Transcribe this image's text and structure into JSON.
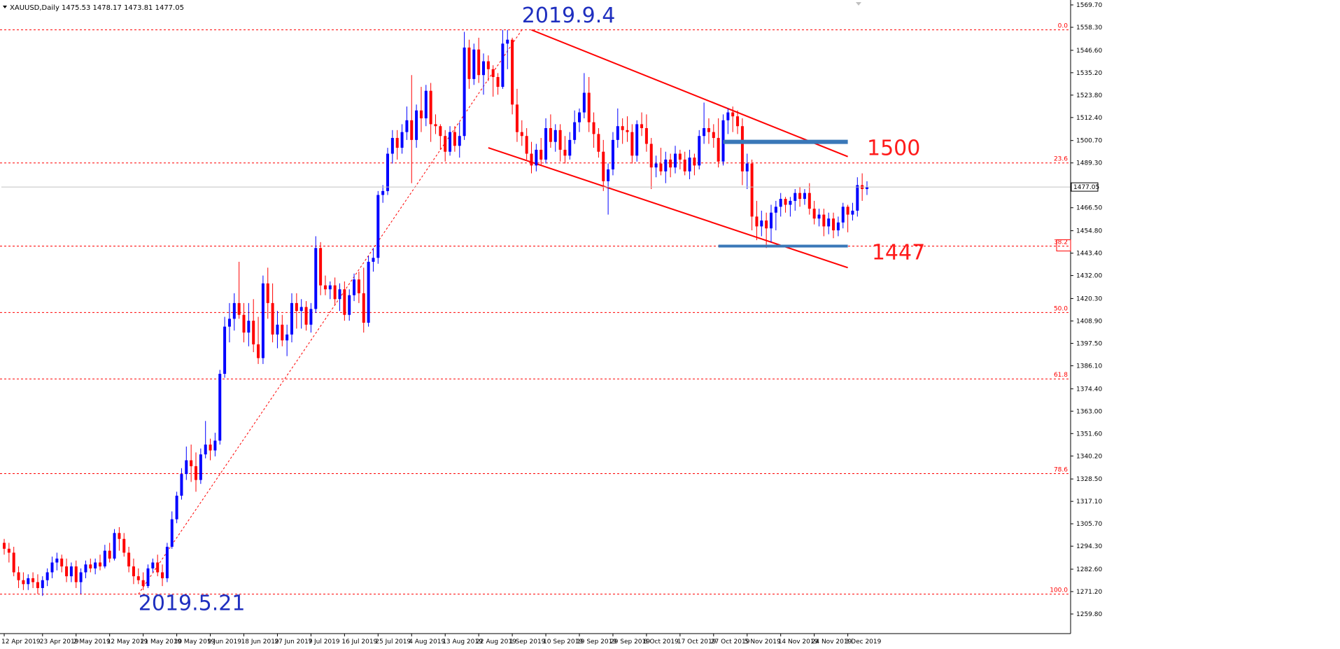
{
  "header": {
    "symbol": "XAUUSD,Daily",
    "ohlc": "1475.53 1478.17 1473.81 1477.05"
  },
  "chart_data": {
    "type": "candlestick",
    "title": "XAUUSD,Daily",
    "ylim": [
      1259.8,
      1569.7
    ],
    "y_ticks": [
      "1569.70",
      "1558.30",
      "1546.60",
      "1535.20",
      "1523.80",
      "1512.40",
      "1500.70",
      "1489.30",
      "1477.05",
      "1466.50",
      "1454.80",
      "1443.40",
      "1432.00",
      "1420.30",
      "1408.90",
      "1397.50",
      "1386.10",
      "1374.40",
      "1363.00",
      "1351.60",
      "1340.20",
      "1328.50",
      "1317.10",
      "1305.70",
      "1294.30",
      "1282.60",
      "1271.20",
      "1259.80"
    ],
    "x_ticks": [
      "12 Apr 2019",
      "23 Apr 2019",
      "2 May 2019",
      "12 May 2019",
      "21 May 2019",
      "30 May 2019",
      "9 Jun 2019",
      "18 Jun 2019",
      "27 Jun 2019",
      "7 Jul 2019",
      "16 Jul 2019",
      "25 Jul 2019",
      "4 Aug 2019",
      "13 Aug 2019",
      "22 Aug 2019",
      "1 Sep 2019",
      "10 Sep 2019",
      "19 Sep 2019",
      "29 Sep 2019",
      "8 Oct 2019",
      "17 Oct 2019",
      "27 Oct 2019",
      "5 Nov 2019",
      "14 Nov 2019",
      "24 Nov 2019",
      "3 Dec 2019"
    ],
    "current_price": "1477.05",
    "bull_color": "#0000ff",
    "bear_color": "#ff0000",
    "candles": [
      {
        "o": 1296,
        "h": 1298,
        "l": 1290,
        "c": 1293
      },
      {
        "o": 1293,
        "h": 1296,
        "l": 1286,
        "c": 1291
      },
      {
        "o": 1291,
        "h": 1294,
        "l": 1279,
        "c": 1281
      },
      {
        "o": 1281,
        "h": 1284,
        "l": 1273,
        "c": 1277
      },
      {
        "o": 1277,
        "h": 1281,
        "l": 1272,
        "c": 1275
      },
      {
        "o": 1275,
        "h": 1280,
        "l": 1272,
        "c": 1278
      },
      {
        "o": 1278,
        "h": 1281,
        "l": 1273,
        "c": 1276
      },
      {
        "o": 1276,
        "h": 1280,
        "l": 1270,
        "c": 1273
      },
      {
        "o": 1273,
        "h": 1279,
        "l": 1269,
        "c": 1277
      },
      {
        "o": 1277,
        "h": 1283,
        "l": 1274,
        "c": 1281
      },
      {
        "o": 1281,
        "h": 1289,
        "l": 1278,
        "c": 1286
      },
      {
        "o": 1286,
        "h": 1291,
        "l": 1282,
        "c": 1288
      },
      {
        "o": 1288,
        "h": 1290,
        "l": 1281,
        "c": 1284
      },
      {
        "o": 1284,
        "h": 1288,
        "l": 1276,
        "c": 1279
      },
      {
        "o": 1279,
        "h": 1286,
        "l": 1276,
        "c": 1284
      },
      {
        "o": 1284,
        "h": 1287,
        "l": 1273,
        "c": 1276
      },
      {
        "o": 1276,
        "h": 1283,
        "l": 1270,
        "c": 1281
      },
      {
        "o": 1281,
        "h": 1287,
        "l": 1278,
        "c": 1285
      },
      {
        "o": 1285,
        "h": 1288,
        "l": 1281,
        "c": 1283
      },
      {
        "o": 1283,
        "h": 1288,
        "l": 1280,
        "c": 1286
      },
      {
        "o": 1286,
        "h": 1290,
        "l": 1282,
        "c": 1284
      },
      {
        "o": 1284,
        "h": 1295,
        "l": 1283,
        "c": 1292
      },
      {
        "o": 1292,
        "h": 1296,
        "l": 1286,
        "c": 1288
      },
      {
        "o": 1288,
        "h": 1303,
        "l": 1287,
        "c": 1301
      },
      {
        "o": 1301,
        "h": 1304,
        "l": 1292,
        "c": 1298
      },
      {
        "o": 1298,
        "h": 1301,
        "l": 1289,
        "c": 1291
      },
      {
        "o": 1291,
        "h": 1294,
        "l": 1281,
        "c": 1284
      },
      {
        "o": 1284,
        "h": 1288,
        "l": 1275,
        "c": 1279
      },
      {
        "o": 1279,
        "h": 1283,
        "l": 1275,
        "c": 1277
      },
      {
        "o": 1277,
        "h": 1281,
        "l": 1272,
        "c": 1274
      },
      {
        "o": 1274,
        "h": 1285,
        "l": 1273,
        "c": 1283
      },
      {
        "o": 1283,
        "h": 1288,
        "l": 1281,
        "c": 1286
      },
      {
        "o": 1286,
        "h": 1290,
        "l": 1279,
        "c": 1281
      },
      {
        "o": 1281,
        "h": 1285,
        "l": 1274,
        "c": 1278
      },
      {
        "o": 1278,
        "h": 1296,
        "l": 1276,
        "c": 1294
      },
      {
        "o": 1294,
        "h": 1312,
        "l": 1293,
        "c": 1308
      },
      {
        "o": 1308,
        "h": 1322,
        "l": 1306,
        "c": 1320
      },
      {
        "o": 1320,
        "h": 1334,
        "l": 1318,
        "c": 1331
      },
      {
        "o": 1331,
        "h": 1345,
        "l": 1328,
        "c": 1338
      },
      {
        "o": 1338,
        "h": 1346,
        "l": 1327,
        "c": 1335
      },
      {
        "o": 1335,
        "h": 1342,
        "l": 1322,
        "c": 1328
      },
      {
        "o": 1328,
        "h": 1344,
        "l": 1326,
        "c": 1341
      },
      {
        "o": 1341,
        "h": 1358,
        "l": 1339,
        "c": 1346
      },
      {
        "o": 1346,
        "h": 1349,
        "l": 1338,
        "c": 1343
      },
      {
        "o": 1343,
        "h": 1352,
        "l": 1340,
        "c": 1348
      },
      {
        "o": 1348,
        "h": 1384,
        "l": 1346,
        "c": 1382
      },
      {
        "o": 1382,
        "h": 1411,
        "l": 1380,
        "c": 1406
      },
      {
        "o": 1406,
        "h": 1418,
        "l": 1398,
        "c": 1410
      },
      {
        "o": 1410,
        "h": 1423,
        "l": 1404,
        "c": 1418
      },
      {
        "o": 1418,
        "h": 1439,
        "l": 1410,
        "c": 1412
      },
      {
        "o": 1412,
        "h": 1418,
        "l": 1398,
        "c": 1403
      },
      {
        "o": 1403,
        "h": 1418,
        "l": 1396,
        "c": 1409
      },
      {
        "o": 1409,
        "h": 1420,
        "l": 1393,
        "c": 1397
      },
      {
        "o": 1397,
        "h": 1411,
        "l": 1387,
        "c": 1390
      },
      {
        "o": 1390,
        "h": 1432,
        "l": 1387,
        "c": 1428
      },
      {
        "o": 1428,
        "h": 1436,
        "l": 1410,
        "c": 1418
      },
      {
        "o": 1418,
        "h": 1428,
        "l": 1398,
        "c": 1402
      },
      {
        "o": 1402,
        "h": 1414,
        "l": 1395,
        "c": 1407
      },
      {
        "o": 1407,
        "h": 1412,
        "l": 1396,
        "c": 1399
      },
      {
        "o": 1399,
        "h": 1407,
        "l": 1391,
        "c": 1402
      },
      {
        "o": 1402,
        "h": 1423,
        "l": 1398,
        "c": 1418
      },
      {
        "o": 1418,
        "h": 1423,
        "l": 1405,
        "c": 1414
      },
      {
        "o": 1414,
        "h": 1420,
        "l": 1405,
        "c": 1416
      },
      {
        "o": 1416,
        "h": 1419,
        "l": 1404,
        "c": 1407
      },
      {
        "o": 1407,
        "h": 1418,
        "l": 1403,
        "c": 1415
      },
      {
        "o": 1415,
        "h": 1452,
        "l": 1413,
        "c": 1446
      },
      {
        "o": 1446,
        "h": 1449,
        "l": 1422,
        "c": 1427
      },
      {
        "o": 1427,
        "h": 1432,
        "l": 1422,
        "c": 1425
      },
      {
        "o": 1425,
        "h": 1429,
        "l": 1420,
        "c": 1427
      },
      {
        "o": 1427,
        "h": 1431,
        "l": 1417,
        "c": 1420
      },
      {
        "o": 1420,
        "h": 1428,
        "l": 1414,
        "c": 1425
      },
      {
        "o": 1425,
        "h": 1429,
        "l": 1409,
        "c": 1412
      },
      {
        "o": 1412,
        "h": 1425,
        "l": 1409,
        "c": 1422
      },
      {
        "o": 1422,
        "h": 1433,
        "l": 1419,
        "c": 1430
      },
      {
        "o": 1430,
        "h": 1434,
        "l": 1418,
        "c": 1423
      },
      {
        "o": 1423,
        "h": 1436,
        "l": 1403,
        "c": 1408
      },
      {
        "o": 1408,
        "h": 1442,
        "l": 1406,
        "c": 1439
      },
      {
        "o": 1439,
        "h": 1446,
        "l": 1434,
        "c": 1441
      },
      {
        "o": 1441,
        "h": 1475,
        "l": 1438,
        "c": 1473
      },
      {
        "o": 1473,
        "h": 1478,
        "l": 1469,
        "c": 1475
      },
      {
        "o": 1475,
        "h": 1497,
        "l": 1473,
        "c": 1494
      },
      {
        "o": 1494,
        "h": 1506,
        "l": 1489,
        "c": 1502
      },
      {
        "o": 1502,
        "h": 1506,
        "l": 1491,
        "c": 1497
      },
      {
        "o": 1497,
        "h": 1509,
        "l": 1494,
        "c": 1505
      },
      {
        "o": 1505,
        "h": 1518,
        "l": 1501,
        "c": 1511
      },
      {
        "o": 1511,
        "h": 1534,
        "l": 1479,
        "c": 1501
      },
      {
        "o": 1501,
        "h": 1519,
        "l": 1497,
        "c": 1516
      },
      {
        "o": 1516,
        "h": 1528,
        "l": 1505,
        "c": 1512
      },
      {
        "o": 1512,
        "h": 1529,
        "l": 1508,
        "c": 1526
      },
      {
        "o": 1526,
        "h": 1530,
        "l": 1500,
        "c": 1509
      },
      {
        "o": 1509,
        "h": 1514,
        "l": 1504,
        "c": 1508
      },
      {
        "o": 1508,
        "h": 1509,
        "l": 1496,
        "c": 1503
      },
      {
        "o": 1503,
        "h": 1506,
        "l": 1490,
        "c": 1495
      },
      {
        "o": 1495,
        "h": 1508,
        "l": 1493,
        "c": 1505
      },
      {
        "o": 1505,
        "h": 1508,
        "l": 1495,
        "c": 1498
      },
      {
        "o": 1498,
        "h": 1510,
        "l": 1492,
        "c": 1503
      },
      {
        "o": 1503,
        "h": 1556,
        "l": 1501,
        "c": 1548
      },
      {
        "o": 1548,
        "h": 1552,
        "l": 1527,
        "c": 1532
      },
      {
        "o": 1532,
        "h": 1550,
        "l": 1529,
        "c": 1547
      },
      {
        "o": 1547,
        "h": 1553,
        "l": 1530,
        "c": 1534
      },
      {
        "o": 1534,
        "h": 1545,
        "l": 1524,
        "c": 1541
      },
      {
        "o": 1541,
        "h": 1544,
        "l": 1531,
        "c": 1537
      },
      {
        "o": 1537,
        "h": 1539,
        "l": 1523,
        "c": 1533
      },
      {
        "o": 1533,
        "h": 1535,
        "l": 1524,
        "c": 1528
      },
      {
        "o": 1528,
        "h": 1557,
        "l": 1527,
        "c": 1550
      },
      {
        "o": 1550,
        "h": 1557,
        "l": 1537,
        "c": 1552
      },
      {
        "o": 1552,
        "h": 1553,
        "l": 1514,
        "c": 1519
      },
      {
        "o": 1519,
        "h": 1527,
        "l": 1500,
        "c": 1505
      },
      {
        "o": 1505,
        "h": 1511,
        "l": 1498,
        "c": 1503
      },
      {
        "o": 1503,
        "h": 1507,
        "l": 1491,
        "c": 1494
      },
      {
        "o": 1494,
        "h": 1500,
        "l": 1484,
        "c": 1488
      },
      {
        "o": 1488,
        "h": 1499,
        "l": 1485,
        "c": 1496
      },
      {
        "o": 1496,
        "h": 1502,
        "l": 1488,
        "c": 1491
      },
      {
        "o": 1491,
        "h": 1512,
        "l": 1489,
        "c": 1507
      },
      {
        "o": 1507,
        "h": 1514,
        "l": 1497,
        "c": 1500
      },
      {
        "o": 1500,
        "h": 1509,
        "l": 1495,
        "c": 1506
      },
      {
        "o": 1506,
        "h": 1509,
        "l": 1490,
        "c": 1496
      },
      {
        "o": 1496,
        "h": 1503,
        "l": 1489,
        "c": 1493
      },
      {
        "o": 1493,
        "h": 1505,
        "l": 1491,
        "c": 1501
      },
      {
        "o": 1501,
        "h": 1516,
        "l": 1499,
        "c": 1510
      },
      {
        "o": 1510,
        "h": 1517,
        "l": 1505,
        "c": 1515
      },
      {
        "o": 1515,
        "h": 1535,
        "l": 1512,
        "c": 1525
      },
      {
        "o": 1525,
        "h": 1533,
        "l": 1505,
        "c": 1510
      },
      {
        "o": 1510,
        "h": 1515,
        "l": 1497,
        "c": 1504
      },
      {
        "o": 1504,
        "h": 1507,
        "l": 1492,
        "c": 1495
      },
      {
        "o": 1495,
        "h": 1501,
        "l": 1475,
        "c": 1480
      },
      {
        "o": 1480,
        "h": 1489,
        "l": 1463,
        "c": 1486
      },
      {
        "o": 1486,
        "h": 1505,
        "l": 1483,
        "c": 1501
      },
      {
        "o": 1501,
        "h": 1517,
        "l": 1497,
        "c": 1508
      },
      {
        "o": 1508,
        "h": 1512,
        "l": 1499,
        "c": 1506
      },
      {
        "o": 1506,
        "h": 1513,
        "l": 1500,
        "c": 1505
      },
      {
        "o": 1505,
        "h": 1509,
        "l": 1489,
        "c": 1493
      },
      {
        "o": 1493,
        "h": 1511,
        "l": 1490,
        "c": 1509
      },
      {
        "o": 1509,
        "h": 1515,
        "l": 1503,
        "c": 1507
      },
      {
        "o": 1507,
        "h": 1514,
        "l": 1495,
        "c": 1499
      },
      {
        "o": 1499,
        "h": 1502,
        "l": 1476,
        "c": 1487
      },
      {
        "o": 1487,
        "h": 1493,
        "l": 1482,
        "c": 1489
      },
      {
        "o": 1489,
        "h": 1497,
        "l": 1483,
        "c": 1485
      },
      {
        "o": 1485,
        "h": 1495,
        "l": 1479,
        "c": 1491
      },
      {
        "o": 1491,
        "h": 1494,
        "l": 1482,
        "c": 1487
      },
      {
        "o": 1487,
        "h": 1498,
        "l": 1484,
        "c": 1494
      },
      {
        "o": 1494,
        "h": 1496,
        "l": 1486,
        "c": 1491
      },
      {
        "o": 1491,
        "h": 1495,
        "l": 1483,
        "c": 1485
      },
      {
        "o": 1485,
        "h": 1496,
        "l": 1481,
        "c": 1492
      },
      {
        "o": 1492,
        "h": 1494,
        "l": 1483,
        "c": 1488
      },
      {
        "o": 1488,
        "h": 1506,
        "l": 1486,
        "c": 1503
      },
      {
        "o": 1503,
        "h": 1520,
        "l": 1499,
        "c": 1507
      },
      {
        "o": 1507,
        "h": 1512,
        "l": 1499,
        "c": 1505
      },
      {
        "o": 1505,
        "h": 1509,
        "l": 1497,
        "c": 1502
      },
      {
        "o": 1502,
        "h": 1512,
        "l": 1487,
        "c": 1490
      },
      {
        "o": 1490,
        "h": 1514,
        "l": 1488,
        "c": 1511
      },
      {
        "o": 1511,
        "h": 1517,
        "l": 1504,
        "c": 1515
      },
      {
        "o": 1515,
        "h": 1518,
        "l": 1505,
        "c": 1513
      },
      {
        "o": 1513,
        "h": 1516,
        "l": 1504,
        "c": 1508
      },
      {
        "o": 1508,
        "h": 1512,
        "l": 1478,
        "c": 1485
      },
      {
        "o": 1485,
        "h": 1494,
        "l": 1476,
        "c": 1489
      },
      {
        "o": 1489,
        "h": 1491,
        "l": 1455,
        "c": 1462
      },
      {
        "o": 1462,
        "h": 1470,
        "l": 1450,
        "c": 1457
      },
      {
        "o": 1457,
        "h": 1465,
        "l": 1452,
        "c": 1460
      },
      {
        "o": 1460,
        "h": 1464,
        "l": 1446,
        "c": 1456
      },
      {
        "o": 1456,
        "h": 1468,
        "l": 1449,
        "c": 1464
      },
      {
        "o": 1464,
        "h": 1470,
        "l": 1455,
        "c": 1467
      },
      {
        "o": 1467,
        "h": 1474,
        "l": 1462,
        "c": 1471
      },
      {
        "o": 1471,
        "h": 1472,
        "l": 1464,
        "c": 1468
      },
      {
        "o": 1468,
        "h": 1472,
        "l": 1462,
        "c": 1470
      },
      {
        "o": 1470,
        "h": 1476,
        "l": 1465,
        "c": 1474
      },
      {
        "o": 1474,
        "h": 1477,
        "l": 1467,
        "c": 1471
      },
      {
        "o": 1471,
        "h": 1476,
        "l": 1468,
        "c": 1474
      },
      {
        "o": 1474,
        "h": 1479,
        "l": 1463,
        "c": 1466
      },
      {
        "o": 1466,
        "h": 1470,
        "l": 1458,
        "c": 1461
      },
      {
        "o": 1461,
        "h": 1466,
        "l": 1457,
        "c": 1463
      },
      {
        "o": 1463,
        "h": 1466,
        "l": 1452,
        "c": 1457
      },
      {
        "o": 1457,
        "h": 1464,
        "l": 1453,
        "c": 1461
      },
      {
        "o": 1461,
        "h": 1464,
        "l": 1451,
        "c": 1455
      },
      {
        "o": 1455,
        "h": 1462,
        "l": 1452,
        "c": 1459
      },
      {
        "o": 1459,
        "h": 1469,
        "l": 1456,
        "c": 1467
      },
      {
        "o": 1467,
        "h": 1468,
        "l": 1454,
        "c": 1463
      },
      {
        "o": 1463,
        "h": 1469,
        "l": 1460,
        "c": 1465
      },
      {
        "o": 1465,
        "h": 1482,
        "l": 1462,
        "c": 1478
      },
      {
        "o": 1478,
        "h": 1484,
        "l": 1470,
        "c": 1476
      },
      {
        "o": 1476,
        "h": 1480,
        "l": 1473,
        "c": 1477
      }
    ],
    "fib_levels": [
      {
        "label": "0.0",
        "price": 1557.0
      },
      {
        "label": "23.6",
        "price": 1489.3
      },
      {
        "label": "38.2",
        "price": 1447.0
      },
      {
        "label": "50.0",
        "price": 1413.2
      },
      {
        "label": "61.8",
        "price": 1379.4
      },
      {
        "label": "78.6",
        "price": 1331.2
      },
      {
        "label": "100.0",
        "price": 1269.9
      }
    ],
    "channel": {
      "color": "#ff0000",
      "upper": [
        {
          "i": 110,
          "p": 1557.0
        },
        {
          "i": 176,
          "p": 1492.5
        }
      ],
      "lower": [
        {
          "i": 101,
          "p": 1497.0
        },
        {
          "i": 176,
          "p": 1436.0
        }
      ]
    },
    "zones": [
      {
        "label": "1500",
        "from_i": 150,
        "to_i": 176,
        "price": 1500.0,
        "color": "#3a78b8"
      },
      {
        "label": "1447",
        "from_i": 149,
        "to_i": 176,
        "price": 1447.0,
        "color": "#3a78b8"
      }
    ],
    "annotations": [
      {
        "text": "2019.9.4",
        "i": 108,
        "p": 1565.0,
        "color": "#1f2fbf"
      },
      {
        "text": "2019.5.21",
        "i": 28,
        "p": 1266.0,
        "color": "#1f2fbf"
      },
      {
        "text": "1500",
        "i": 180,
        "p": 1497.5,
        "color": "#ff1a1a"
      },
      {
        "text": "1447",
        "i": 181,
        "p": 1444.5,
        "color": "#ff1a1a"
      }
    ],
    "grid": false
  }
}
